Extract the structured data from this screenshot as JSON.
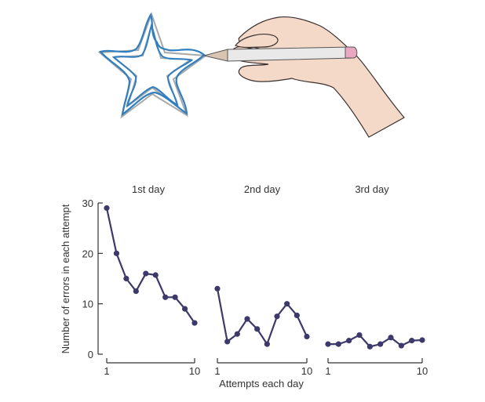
{
  "chart_data": {
    "type": "line",
    "ylabel": "Number of errors in each attempt",
    "xlabel": "Attempts each day",
    "ylim": [
      0,
      30
    ],
    "yticks": [
      0,
      10,
      20,
      30
    ],
    "xlim": [
      1,
      10
    ],
    "xticks": [
      1,
      10
    ],
    "line_color": "#3d3a6b",
    "panels": [
      {
        "title": "1st day",
        "x": [
          1,
          2,
          3,
          4,
          5,
          6,
          7,
          8,
          9,
          10
        ],
        "values": [
          29,
          20,
          15,
          12.5,
          16,
          15.7,
          11.3,
          11.3,
          9,
          6.2
        ]
      },
      {
        "title": "2nd day",
        "x": [
          1,
          2,
          3,
          4,
          5,
          6,
          7,
          8,
          9,
          10
        ],
        "values": [
          13,
          2.5,
          4,
          7,
          5,
          2,
          7.5,
          10,
          7.7,
          3.5
        ]
      },
      {
        "title": "3rd day",
        "x": [
          1,
          2,
          3,
          4,
          5,
          6,
          7,
          8,
          9,
          10
        ],
        "values": [
          2,
          2,
          2.7,
          3.8,
          1.5,
          2,
          3.3,
          1.7,
          2.7,
          2.8
        ]
      }
    ]
  },
  "illustration": {
    "star_trace_color": "#2f7fc1",
    "star_template_color": "#a9a9a9",
    "skin_color": "#f5d9c8",
    "pencil_tip_color": "#e7a8c0"
  }
}
